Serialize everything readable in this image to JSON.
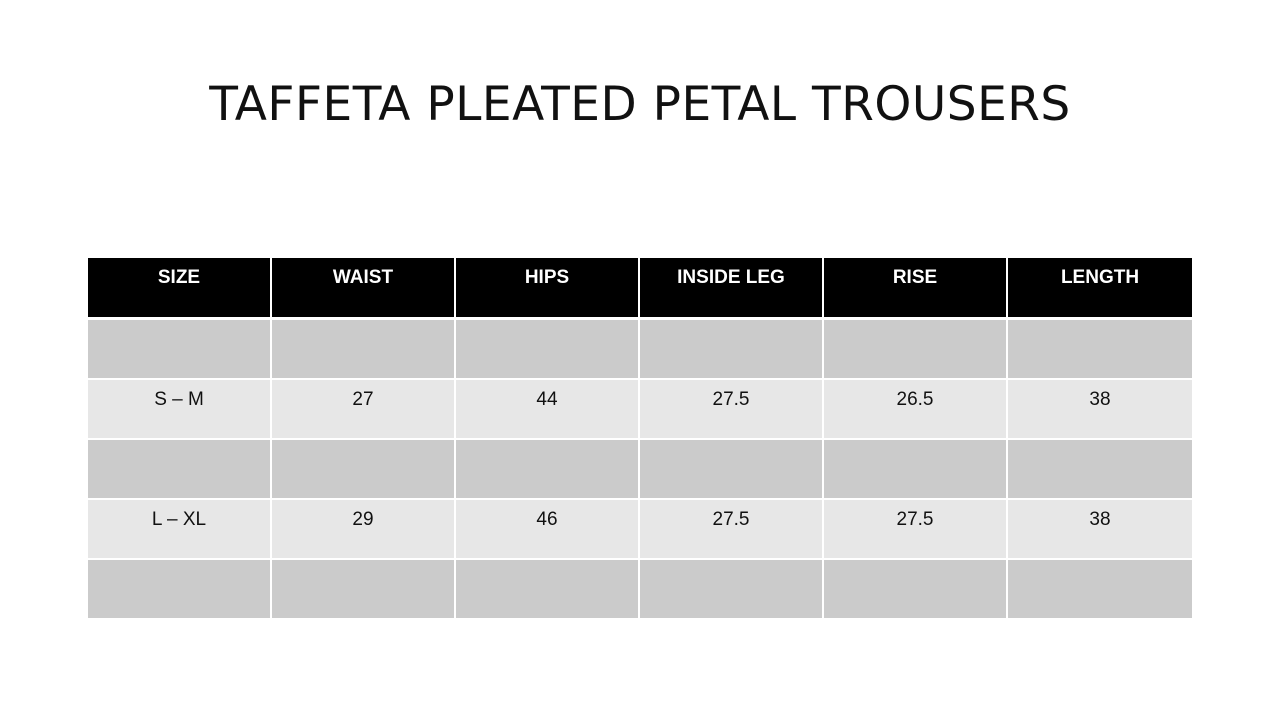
{
  "title": "TAFFETA PLEATED PETAL TROUSERS",
  "table": {
    "headers": [
      "SIZE",
      "WAIST",
      "HIPS",
      "INSIDE LEG",
      "RISE",
      "LENGTH"
    ],
    "rows": [
      [
        "",
        "",
        "",
        "",
        "",
        ""
      ],
      [
        "S – M",
        "27",
        "44",
        "27.5",
        "26.5",
        "38"
      ],
      [
        "",
        "",
        "",
        "",
        "",
        ""
      ],
      [
        "L – XL",
        "29",
        "46",
        "27.5",
        "27.5",
        "38"
      ],
      [
        "",
        "",
        "",
        "",
        "",
        ""
      ]
    ]
  },
  "colors": {
    "header_bg": "#000000",
    "header_text": "#ffffff",
    "row_dark": "#cbcbcb",
    "row_light": "#e7e7e7"
  }
}
